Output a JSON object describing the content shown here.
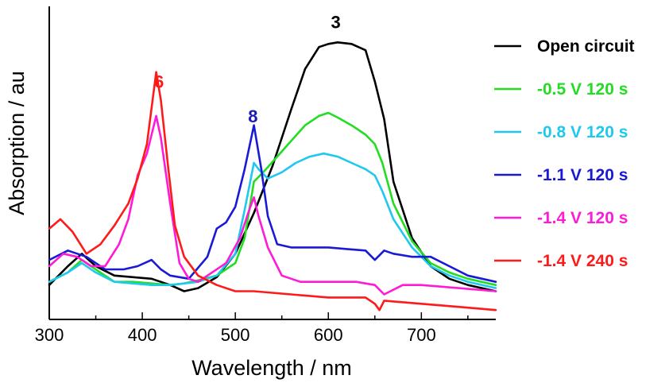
{
  "chart_data": {
    "type": "line",
    "title": "",
    "xlabel": "Wavelength / nm",
    "ylabel": "Absorption / au",
    "xlim": [
      300,
      780
    ],
    "ylim": [
      0,
      1.0
    ],
    "x_ticks": [
      300,
      400,
      500,
      600,
      700
    ],
    "y_ticks_shown": false,
    "grid": false,
    "legend_position": "right",
    "annotations": [
      {
        "text": "3",
        "x": 608,
        "y": 0.93,
        "color": "#000000"
      },
      {
        "text": "6",
        "x": 418,
        "y": 0.74,
        "color": "#ff1a1a"
      },
      {
        "text": "8",
        "x": 519,
        "y": 0.63,
        "color": "#1a1ab5"
      }
    ],
    "series": [
      {
        "name": "Open circuit",
        "color": "#000000",
        "x": [
          300,
          320,
          335,
          350,
          370,
          390,
          410,
          430,
          445,
          460,
          480,
          500,
          520,
          540,
          560,
          575,
          590,
          600,
          610,
          625,
          640,
          650,
          660,
          670,
          690,
          710,
          730,
          750,
          780
        ],
        "y": [
          0.11,
          0.17,
          0.21,
          0.17,
          0.14,
          0.135,
          0.13,
          0.11,
          0.09,
          0.1,
          0.135,
          0.21,
          0.34,
          0.49,
          0.67,
          0.8,
          0.87,
          0.88,
          0.885,
          0.88,
          0.86,
          0.76,
          0.64,
          0.44,
          0.26,
          0.17,
          0.13,
          0.11,
          0.09
        ]
      },
      {
        "name": "-0.5 V 120 s",
        "color": "#22dd22",
        "x": [
          300,
          320,
          335,
          350,
          370,
          390,
          410,
          430,
          445,
          460,
          480,
          500,
          510,
          520,
          530,
          545,
          560,
          575,
          590,
          600,
          610,
          625,
          640,
          650,
          658,
          670,
          690,
          710,
          730,
          750,
          780
        ],
        "y": [
          0.12,
          0.15,
          0.19,
          0.16,
          0.12,
          0.12,
          0.115,
          0.11,
          0.115,
          0.125,
          0.14,
          0.18,
          0.26,
          0.44,
          0.47,
          0.52,
          0.57,
          0.62,
          0.65,
          0.66,
          0.645,
          0.62,
          0.59,
          0.56,
          0.5,
          0.37,
          0.25,
          0.18,
          0.15,
          0.13,
          0.11
        ]
      },
      {
        "name": "-0.8 V 120 s",
        "color": "#1ec8ee",
        "x": [
          300,
          320,
          335,
          350,
          370,
          390,
          410,
          430,
          445,
          460,
          480,
          500,
          510,
          520,
          525,
          535,
          550,
          565,
          580,
          595,
          610,
          625,
          640,
          650,
          658,
          670,
          690,
          710,
          730,
          750,
          780
        ],
        "y": [
          0.12,
          0.15,
          0.18,
          0.15,
          0.12,
          0.115,
          0.11,
          0.11,
          0.115,
          0.12,
          0.14,
          0.21,
          0.35,
          0.5,
          0.48,
          0.45,
          0.47,
          0.5,
          0.52,
          0.53,
          0.52,
          0.5,
          0.48,
          0.46,
          0.41,
          0.32,
          0.23,
          0.17,
          0.14,
          0.12,
          0.1
        ]
      },
      {
        "name": "-1.1 V 120 s",
        "color": "#1a1ad6",
        "x": [
          300,
          320,
          340,
          360,
          380,
          395,
          410,
          420,
          430,
          450,
          470,
          480,
          490,
          500,
          510,
          520,
          528,
          535,
          545,
          560,
          580,
          600,
          620,
          640,
          650,
          660,
          670,
          690,
          710,
          730,
          750,
          780
        ],
        "y": [
          0.19,
          0.22,
          0.2,
          0.16,
          0.16,
          0.17,
          0.19,
          0.16,
          0.14,
          0.13,
          0.2,
          0.29,
          0.31,
          0.36,
          0.48,
          0.62,
          0.48,
          0.33,
          0.24,
          0.23,
          0.23,
          0.23,
          0.225,
          0.22,
          0.19,
          0.22,
          0.21,
          0.2,
          0.2,
          0.17,
          0.14,
          0.12
        ]
      },
      {
        "name": "-1.4 V 120 s",
        "color": "#ff1ad6",
        "x": [
          300,
          315,
          330,
          345,
          360,
          375,
          385,
          395,
          405,
          415,
          420,
          430,
          440,
          450,
          460,
          475,
          490,
          505,
          515,
          520,
          525,
          535,
          550,
          570,
          600,
          630,
          650,
          660,
          680,
          700,
          740,
          780
        ],
        "y": [
          0.17,
          0.21,
          0.2,
          0.17,
          0.17,
          0.24,
          0.32,
          0.46,
          0.53,
          0.65,
          0.58,
          0.37,
          0.18,
          0.13,
          0.12,
          0.15,
          0.18,
          0.26,
          0.35,
          0.39,
          0.33,
          0.23,
          0.14,
          0.12,
          0.12,
          0.12,
          0.11,
          0.08,
          0.11,
          0.11,
          0.1,
          0.09
        ]
      },
      {
        "name": "-1.4 V 240 s",
        "color": "#ff1a1a",
        "x": [
          300,
          312,
          325,
          340,
          355,
          370,
          385,
          395,
          405,
          415,
          420,
          428,
          435,
          445,
          460,
          480,
          500,
          520,
          560,
          600,
          640,
          650,
          655,
          660,
          700,
          740,
          780
        ],
        "y": [
          0.29,
          0.32,
          0.28,
          0.21,
          0.24,
          0.3,
          0.37,
          0.45,
          0.56,
          0.79,
          0.7,
          0.48,
          0.3,
          0.2,
          0.14,
          0.11,
          0.09,
          0.09,
          0.08,
          0.07,
          0.07,
          0.05,
          0.03,
          0.06,
          0.05,
          0.04,
          0.03
        ]
      }
    ]
  }
}
